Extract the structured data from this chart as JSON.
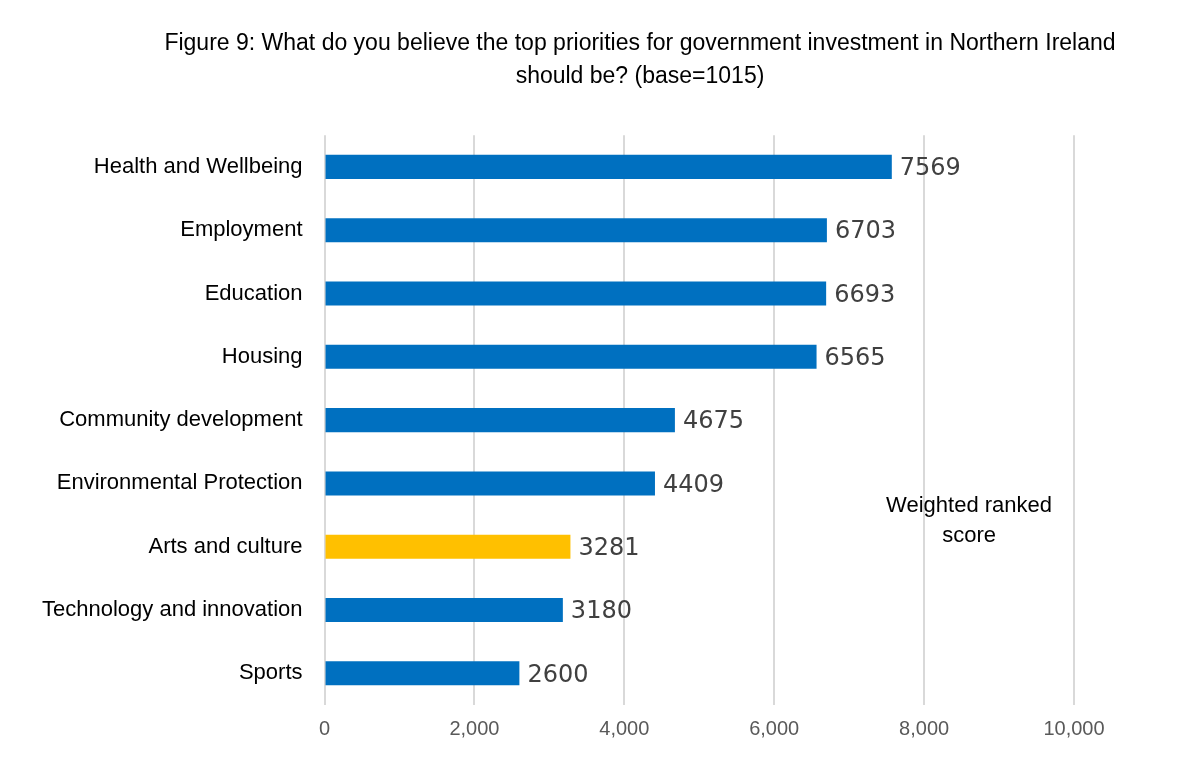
{
  "chart_data": {
    "type": "bar",
    "orientation": "horizontal",
    "title": "Figure 9: What do you believe the top priorities for government investment in Northern Ireland should be? (base=1015)",
    "categories": [
      "Health and Wellbeing",
      "Employment",
      "Education",
      "Housing",
      "Community development",
      "Environmental Protection",
      "Arts and culture",
      "Technology and innovation",
      "Sports"
    ],
    "values": [
      7569,
      6703,
      6693,
      6565,
      4675,
      4409,
      3281,
      3180,
      2600
    ],
    "colors": [
      "#0070c0",
      "#0070c0",
      "#0070c0",
      "#0070c0",
      "#0070c0",
      "#0070c0",
      "#ffc000",
      "#0070c0",
      "#0070c0"
    ],
    "xlim": [
      0,
      10000
    ],
    "xticks": [
      0,
      {
        "value": 2000,
        "label": "2,000"
      },
      {
        "value": 4000,
        "label": "4,000"
      },
      {
        "value": 6000,
        "label": "6,000"
      },
      {
        "value": 8000,
        "label": "8,000"
      },
      {
        "value": 10000,
        "label": "10,000"
      }
    ],
    "grid": "x",
    "data_labels": true,
    "legend": false,
    "annotations": [
      "Weighted ranked score"
    ]
  }
}
